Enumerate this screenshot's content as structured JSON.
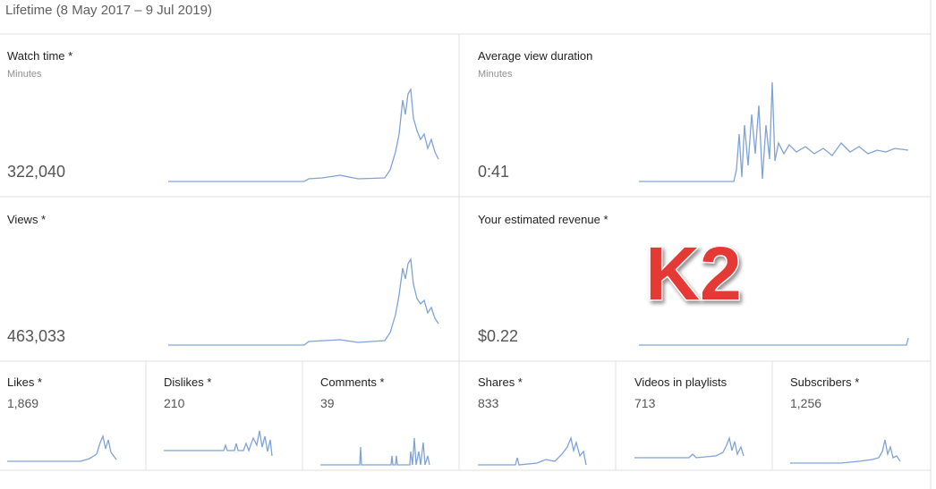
{
  "header": {
    "title": "Lifetime (8 May 2017 – 9 Jul 2019)"
  },
  "cards": [
    {
      "title": "Watch time *",
      "unit": "Minutes",
      "value": "322,040"
    },
    {
      "title": "Average view duration",
      "unit": "Minutes",
      "value": "0:41"
    },
    {
      "title": "Views *",
      "value": "463,033"
    },
    {
      "title": "Your estimated revenue *",
      "value": "$0.22"
    }
  ],
  "small_cards": [
    {
      "title": "Likes *",
      "value": "1,869"
    },
    {
      "title": "Dislikes *",
      "value": "210"
    },
    {
      "title": "Comments *",
      "value": "39"
    },
    {
      "title": "Shares *",
      "value": "833"
    },
    {
      "title": "Videos in playlists",
      "value": "713"
    },
    {
      "title": "Subscribers *",
      "value": "1,256"
    }
  ],
  "overlay": {
    "label": "K2"
  }
}
